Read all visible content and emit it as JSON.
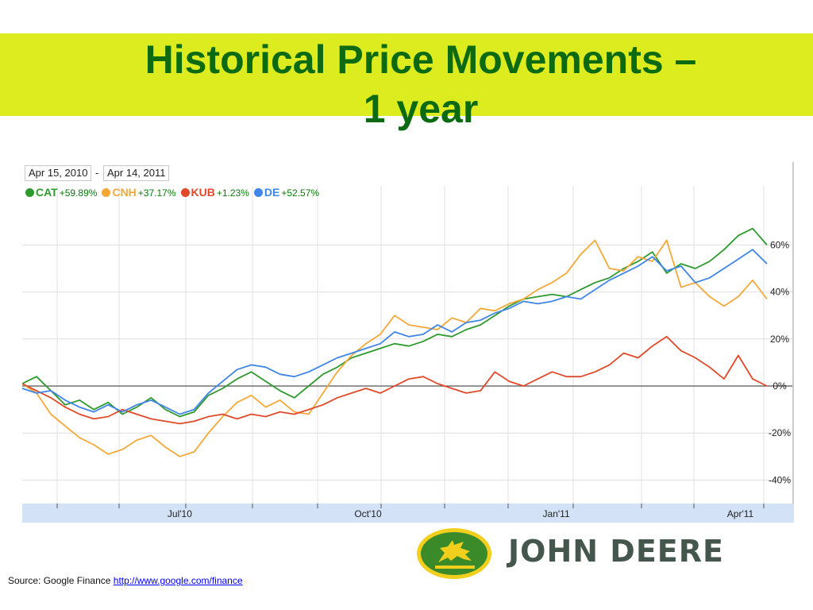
{
  "slide": {
    "title_line1": "Historical Price Movements –",
    "title_line2": "1 year"
  },
  "chart": {
    "date_from": "Apr 15, 2010",
    "date_sep": "-",
    "date_to": "Apr 14, 2011"
  },
  "chart_data": {
    "type": "line",
    "ylim": [
      -50,
      75
    ],
    "y_ticks": [
      -40,
      -20,
      0,
      20,
      40,
      60
    ],
    "y_tick_labels": [
      "-40%",
      "-20%",
      "0%",
      "20%",
      "40%",
      "60%"
    ],
    "x_range": [
      "2010-04-15",
      "2011-04-14"
    ],
    "x_tick_labels": [
      {
        "label": "Jul'10",
        "date": "2010-07-01"
      },
      {
        "label": "Oct'10",
        "date": "2010-10-01"
      },
      {
        "label": "Jan'11",
        "date": "2011-01-01"
      },
      {
        "label": "Apr'11",
        "date": "2011-04-01"
      }
    ],
    "grid": true,
    "legend_placement": "top-left",
    "series": [
      {
        "name": "CAT",
        "change": "+59.89%",
        "color": "#2e9a2e",
        "points": [
          [
            "2010-04-15",
            1
          ],
          [
            "2010-04-22",
            4
          ],
          [
            "2010-04-29",
            -2
          ],
          [
            "2010-05-06",
            -8
          ],
          [
            "2010-05-13",
            -6
          ],
          [
            "2010-05-20",
            -10
          ],
          [
            "2010-05-27",
            -7
          ],
          [
            "2010-06-03",
            -12
          ],
          [
            "2010-06-10",
            -9
          ],
          [
            "2010-06-17",
            -5
          ],
          [
            "2010-06-24",
            -10
          ],
          [
            "2010-07-01",
            -13
          ],
          [
            "2010-07-08",
            -11
          ],
          [
            "2010-07-15",
            -4
          ],
          [
            "2010-07-22",
            -1
          ],
          [
            "2010-07-29",
            3
          ],
          [
            "2010-08-05",
            6
          ],
          [
            "2010-08-12",
            2
          ],
          [
            "2010-08-19",
            -2
          ],
          [
            "2010-08-26",
            -5
          ],
          [
            "2010-09-02",
            0
          ],
          [
            "2010-09-09",
            5
          ],
          [
            "2010-09-16",
            8
          ],
          [
            "2010-09-23",
            12
          ],
          [
            "2010-09-30",
            14
          ],
          [
            "2010-10-07",
            16
          ],
          [
            "2010-10-14",
            18
          ],
          [
            "2010-10-21",
            17
          ],
          [
            "2010-10-28",
            19
          ],
          [
            "2010-11-04",
            22
          ],
          [
            "2010-11-11",
            21
          ],
          [
            "2010-11-18",
            24
          ],
          [
            "2010-11-25",
            26
          ],
          [
            "2010-12-02",
            30
          ],
          [
            "2010-12-09",
            34
          ],
          [
            "2010-12-16",
            37
          ],
          [
            "2010-12-23",
            38
          ],
          [
            "2010-12-30",
            39
          ],
          [
            "2011-01-06",
            38
          ],
          [
            "2011-01-13",
            41
          ],
          [
            "2011-01-20",
            44
          ],
          [
            "2011-01-27",
            46
          ],
          [
            "2011-02-03",
            50
          ],
          [
            "2011-02-10",
            53
          ],
          [
            "2011-02-17",
            57
          ],
          [
            "2011-02-24",
            48
          ],
          [
            "2011-03-03",
            52
          ],
          [
            "2011-03-10",
            50
          ],
          [
            "2011-03-17",
            53
          ],
          [
            "2011-03-24",
            58
          ],
          [
            "2011-03-31",
            64
          ],
          [
            "2011-04-07",
            67
          ],
          [
            "2011-04-14",
            60
          ]
        ]
      },
      {
        "name": "CNH",
        "change": "+37.17%",
        "color": "#f5a83a",
        "points": [
          [
            "2010-04-15",
            1
          ],
          [
            "2010-04-22",
            -3
          ],
          [
            "2010-04-29",
            -12
          ],
          [
            "2010-05-06",
            -17
          ],
          [
            "2010-05-13",
            -22
          ],
          [
            "2010-05-20",
            -25
          ],
          [
            "2010-05-27",
            -29
          ],
          [
            "2010-06-03",
            -27
          ],
          [
            "2010-06-10",
            -23
          ],
          [
            "2010-06-17",
            -21
          ],
          [
            "2010-06-24",
            -26
          ],
          [
            "2010-07-01",
            -30
          ],
          [
            "2010-07-08",
            -28
          ],
          [
            "2010-07-15",
            -20
          ],
          [
            "2010-07-22",
            -13
          ],
          [
            "2010-07-29",
            -7
          ],
          [
            "2010-08-05",
            -4
          ],
          [
            "2010-08-12",
            -9
          ],
          [
            "2010-08-19",
            -6
          ],
          [
            "2010-08-26",
            -11
          ],
          [
            "2010-09-02",
            -12
          ],
          [
            "2010-09-09",
            -3
          ],
          [
            "2010-09-16",
            6
          ],
          [
            "2010-09-23",
            13
          ],
          [
            "2010-09-30",
            18
          ],
          [
            "2010-10-07",
            22
          ],
          [
            "2010-10-14",
            30
          ],
          [
            "2010-10-21",
            26
          ],
          [
            "2010-10-28",
            25
          ],
          [
            "2010-11-04",
            24
          ],
          [
            "2010-11-11",
            29
          ],
          [
            "2010-11-18",
            27
          ],
          [
            "2010-11-25",
            33
          ],
          [
            "2010-12-02",
            32
          ],
          [
            "2010-12-09",
            35
          ],
          [
            "2010-12-16",
            37
          ],
          [
            "2010-12-23",
            41
          ],
          [
            "2010-12-30",
            44
          ],
          [
            "2011-01-06",
            48
          ],
          [
            "2011-01-13",
            56
          ],
          [
            "2011-01-20",
            62
          ],
          [
            "2011-01-27",
            50
          ],
          [
            "2011-02-03",
            49
          ],
          [
            "2011-02-10",
            55
          ],
          [
            "2011-02-17",
            53
          ],
          [
            "2011-02-24",
            62
          ],
          [
            "2011-03-03",
            42
          ],
          [
            "2011-03-10",
            44
          ],
          [
            "2011-03-17",
            38
          ],
          [
            "2011-03-24",
            34
          ],
          [
            "2011-03-31",
            38
          ],
          [
            "2011-04-07",
            45
          ],
          [
            "2011-04-14",
            37
          ]
        ]
      },
      {
        "name": "KUB",
        "change": "+1.23%",
        "color": "#e04a2a",
        "points": [
          [
            "2010-04-15",
            1
          ],
          [
            "2010-04-22",
            -2
          ],
          [
            "2010-04-29",
            -5
          ],
          [
            "2010-05-06",
            -9
          ],
          [
            "2010-05-13",
            -12
          ],
          [
            "2010-05-20",
            -14
          ],
          [
            "2010-05-27",
            -13
          ],
          [
            "2010-06-03",
            -10
          ],
          [
            "2010-06-10",
            -12
          ],
          [
            "2010-06-17",
            -14
          ],
          [
            "2010-06-24",
            -15
          ],
          [
            "2010-07-01",
            -16
          ],
          [
            "2010-07-08",
            -15
          ],
          [
            "2010-07-15",
            -13
          ],
          [
            "2010-07-22",
            -12
          ],
          [
            "2010-07-29",
            -14
          ],
          [
            "2010-08-05",
            -12
          ],
          [
            "2010-08-12",
            -13
          ],
          [
            "2010-08-19",
            -11
          ],
          [
            "2010-08-26",
            -12
          ],
          [
            "2010-09-02",
            -10
          ],
          [
            "2010-09-09",
            -8
          ],
          [
            "2010-09-16",
            -5
          ],
          [
            "2010-09-23",
            -3
          ],
          [
            "2010-09-30",
            -1
          ],
          [
            "2010-10-07",
            -3
          ],
          [
            "2010-10-14",
            0
          ],
          [
            "2010-10-21",
            3
          ],
          [
            "2010-10-28",
            4
          ],
          [
            "2010-11-04",
            1
          ],
          [
            "2010-11-11",
            -1
          ],
          [
            "2010-11-18",
            -3
          ],
          [
            "2010-11-25",
            -2
          ],
          [
            "2010-12-02",
            6
          ],
          [
            "2010-12-09",
            2
          ],
          [
            "2010-12-16",
            0
          ],
          [
            "2010-12-23",
            3
          ],
          [
            "2010-12-30",
            6
          ],
          [
            "2011-01-06",
            4
          ],
          [
            "2011-01-13",
            4
          ],
          [
            "2011-01-20",
            6
          ],
          [
            "2011-01-27",
            9
          ],
          [
            "2011-02-03",
            14
          ],
          [
            "2011-02-10",
            12
          ],
          [
            "2011-02-17",
            17
          ],
          [
            "2011-02-24",
            21
          ],
          [
            "2011-03-03",
            15
          ],
          [
            "2011-03-10",
            12
          ],
          [
            "2011-03-17",
            8
          ],
          [
            "2011-03-24",
            3
          ],
          [
            "2011-03-31",
            13
          ],
          [
            "2011-04-07",
            3
          ],
          [
            "2011-04-14",
            0
          ]
        ]
      },
      {
        "name": "DE",
        "change": "+52.57%",
        "color": "#3f86e6",
        "points": [
          [
            "2010-04-15",
            -1
          ],
          [
            "2010-04-22",
            -3
          ],
          [
            "2010-04-29",
            -2
          ],
          [
            "2010-05-06",
            -6
          ],
          [
            "2010-05-13",
            -9
          ],
          [
            "2010-05-20",
            -11
          ],
          [
            "2010-05-27",
            -8
          ],
          [
            "2010-06-03",
            -11
          ],
          [
            "2010-06-10",
            -8
          ],
          [
            "2010-06-17",
            -6
          ],
          [
            "2010-06-24",
            -9
          ],
          [
            "2010-07-01",
            -12
          ],
          [
            "2010-07-08",
            -10
          ],
          [
            "2010-07-15",
            -3
          ],
          [
            "2010-07-22",
            2
          ],
          [
            "2010-07-29",
            7
          ],
          [
            "2010-08-05",
            9
          ],
          [
            "2010-08-12",
            8
          ],
          [
            "2010-08-19",
            5
          ],
          [
            "2010-08-26",
            4
          ],
          [
            "2010-09-02",
            6
          ],
          [
            "2010-09-09",
            9
          ],
          [
            "2010-09-16",
            12
          ],
          [
            "2010-09-23",
            14
          ],
          [
            "2010-09-30",
            16
          ],
          [
            "2010-10-07",
            18
          ],
          [
            "2010-10-14",
            23
          ],
          [
            "2010-10-21",
            21
          ],
          [
            "2010-10-28",
            22
          ],
          [
            "2010-11-04",
            26
          ],
          [
            "2010-11-11",
            23
          ],
          [
            "2010-11-18",
            27
          ],
          [
            "2010-11-25",
            28
          ],
          [
            "2010-12-02",
            31
          ],
          [
            "2010-12-09",
            33
          ],
          [
            "2010-12-16",
            36
          ],
          [
            "2010-12-23",
            35
          ],
          [
            "2010-12-30",
            36
          ],
          [
            "2011-01-06",
            38
          ],
          [
            "2011-01-13",
            37
          ],
          [
            "2011-01-20",
            41
          ],
          [
            "2011-01-27",
            45
          ],
          [
            "2011-02-03",
            48
          ],
          [
            "2011-02-10",
            51
          ],
          [
            "2011-02-17",
            55
          ],
          [
            "2011-02-24",
            49
          ],
          [
            "2011-03-03",
            51
          ],
          [
            "2011-03-10",
            44
          ],
          [
            "2011-03-17",
            46
          ],
          [
            "2011-03-24",
            50
          ],
          [
            "2011-03-31",
            54
          ],
          [
            "2011-04-07",
            58
          ],
          [
            "2011-04-14",
            52
          ]
        ]
      }
    ]
  },
  "logo": {
    "brand_text": "JOHN DEERE",
    "icon": "deer-logo-icon",
    "colors": {
      "green": "#3a8a2a",
      "yellow": "#f2cf1c"
    }
  },
  "source": {
    "label": "Source: Google Finance",
    "link_text": "http://www.google.com/finance"
  },
  "colors": {
    "title_band": "#dcec1e",
    "title_text": "#0b6a12"
  }
}
